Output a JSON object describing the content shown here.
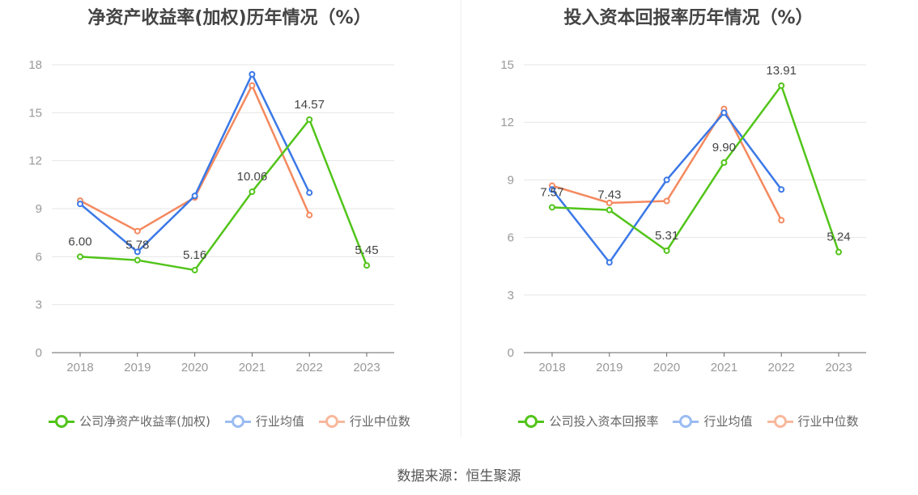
{
  "source_text": "数据来源：恒生聚源",
  "chart_data": [
    {
      "type": "line",
      "title": "净资产收益率(加权)历年情况（%）",
      "categories": [
        "2018",
        "2019",
        "2020",
        "2021",
        "2022",
        "2023"
      ],
      "ylim": [
        0,
        18
      ],
      "yticks": [
        0,
        3,
        6,
        9,
        12,
        15,
        18
      ],
      "grid": true,
      "legend_position": "bottom",
      "series": [
        {
          "name": "公司净资产收益率(加权)",
          "color": "#52c41a",
          "values": [
            6.0,
            5.78,
            5.16,
            10.06,
            14.57,
            5.45
          ],
          "labels": [
            "6.00",
            "5.78",
            "5.16",
            "10.06",
            "14.57",
            "5.45"
          ],
          "show_labels": true
        },
        {
          "name": "行业均值",
          "color": "#3b78e7",
          "values": [
            9.3,
            6.3,
            9.8,
            17.4,
            10.0,
            null
          ],
          "show_labels": false
        },
        {
          "name": "行业中位数",
          "color": "#f4895f",
          "values": [
            9.5,
            7.6,
            9.7,
            16.7,
            8.6,
            null
          ],
          "show_labels": false
        }
      ]
    },
    {
      "type": "line",
      "title": "投入资本回报率历年情况（%）",
      "categories": [
        "2018",
        "2019",
        "2020",
        "2021",
        "2022",
        "2023"
      ],
      "ylim": [
        0,
        15
      ],
      "yticks": [
        0,
        3,
        6,
        9,
        12,
        15
      ],
      "grid": true,
      "legend_position": "bottom",
      "series": [
        {
          "name": "公司投入资本回报率",
          "color": "#52c41a",
          "values": [
            7.57,
            7.43,
            5.31,
            9.9,
            13.91,
            5.24
          ],
          "labels": [
            "7.57",
            "7.43",
            "5.31",
            "9.90",
            "13.91",
            "5.24"
          ],
          "show_labels": true
        },
        {
          "name": "行业均值",
          "color": "#3b78e7",
          "values": [
            8.5,
            4.7,
            9.0,
            12.5,
            8.5,
            null
          ],
          "show_labels": false
        },
        {
          "name": "行业中位数",
          "color": "#f4895f",
          "values": [
            8.7,
            7.8,
            7.9,
            12.7,
            6.9,
            null
          ],
          "show_labels": false
        }
      ]
    }
  ]
}
